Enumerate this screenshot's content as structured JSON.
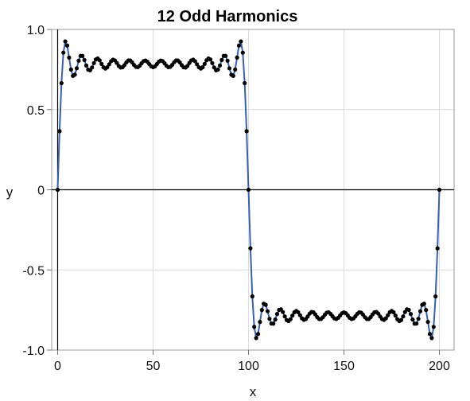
{
  "chart_data": {
    "type": "line",
    "title": "12 Odd Harmonics",
    "xlabel": "x",
    "ylabel": "y",
    "xlim": [
      0,
      200
    ],
    "ylim": [
      -1.0,
      1.0
    ],
    "x_ticks": [
      0,
      50,
      100,
      150,
      200
    ],
    "x_tick_labels": [
      "0",
      "50",
      "100",
      "150",
      "200"
    ],
    "y_ticks": [
      1.0,
      0.5,
      0,
      -0.5,
      -1.0
    ],
    "y_tick_labels": [
      "1.0",
      "0.5",
      "0",
      "-0.5",
      "-1.0"
    ],
    "grid": true,
    "reference_lines": {
      "x": 0,
      "y": 0
    },
    "series": [
      {
        "function": "sum over k=1..12 of sin((2k-1)*2*pi*x/200)/(2k-1)",
        "x_step": 1,
        "markers": true,
        "line_color": "#3a5fb0",
        "marker_color": "#000000"
      }
    ]
  }
}
